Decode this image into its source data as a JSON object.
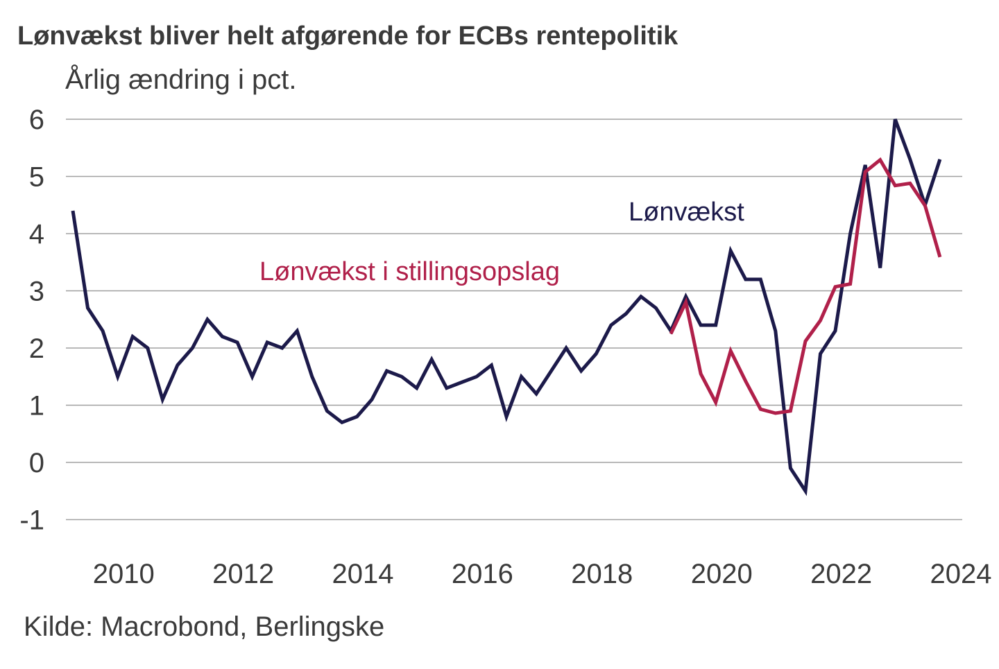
{
  "chart_data": {
    "type": "line",
    "title": "Lønvækst bliver helt afgørende for ECBs rentepolitik",
    "subtitle": "Årlig ændring i pct.",
    "source": "Kilde: Macrobond, Berlingske",
    "xlabel": "",
    "ylabel": "Årlig ændring i pct.",
    "ylim": [
      -1,
      6
    ],
    "yticks": [
      "6",
      "5",
      "4",
      "3",
      "2",
      "1",
      "0",
      "-1"
    ],
    "ytick_values": [
      6,
      5,
      4,
      3,
      2,
      1,
      0,
      -1
    ],
    "xticks": [
      "2010",
      "2012",
      "2014",
      "2016",
      "2018",
      "2020",
      "2022",
      "2024"
    ],
    "xtick_values": [
      2010,
      2012,
      2014,
      2016,
      2018,
      2020,
      2022,
      2024
    ],
    "grid": true,
    "legend": "inline labels",
    "series": [
      {
        "name": "Lønvækst",
        "color": "#1c1a4a",
        "x_start": 2009.0,
        "x_step": 0.25,
        "values": [
          4.4,
          2.7,
          2.3,
          1.5,
          2.2,
          2.0,
          1.1,
          1.7,
          2.0,
          2.5,
          2.2,
          2.1,
          1.5,
          2.1,
          2.0,
          2.3,
          1.5,
          0.9,
          0.7,
          0.8,
          1.1,
          1.6,
          1.5,
          1.3,
          1.8,
          1.3,
          1.4,
          1.5,
          1.7,
          0.8,
          1.5,
          1.2,
          1.6,
          2.0,
          1.6,
          1.9,
          2.4,
          2.6,
          2.9,
          2.7,
          2.3,
          2.9,
          2.4,
          2.4,
          3.7,
          3.2,
          3.2,
          2.3,
          -0.1,
          -0.5,
          1.9,
          2.3,
          4.0,
          5.2,
          3.4,
          6.0,
          5.3,
          4.5,
          5.3
        ]
      },
      {
        "name": "Lønvækst i stillingsopslag",
        "color": "#b0204a",
        "x_start": 2019.0,
        "x_step": 0.25,
        "values": [
          2.25,
          2.8,
          1.55,
          1.05,
          1.95,
          1.42,
          0.93,
          0.86,
          0.9,
          2.12,
          2.48,
          3.07,
          3.12,
          5.08,
          5.29,
          4.84,
          4.88,
          4.49,
          3.59
        ]
      }
    ]
  }
}
